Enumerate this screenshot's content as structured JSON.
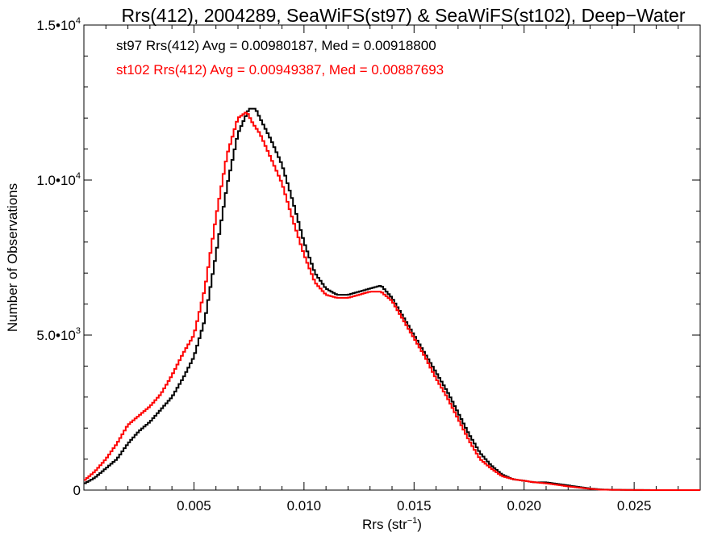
{
  "chart_data": {
    "type": "line",
    "title": "Rrs(412), 2004289, SeaWiFS(st97) & SeaWiFS(st102), Deep−Water",
    "xlabel_base": "Rrs (str",
    "xlabel_sup": "−1",
    "xlabel_end": ")",
    "ylabel": "Number of Observations",
    "xlim": [
      0.0,
      0.028
    ],
    "ylim": [
      0,
      15000
    ],
    "x_ticks": [
      {
        "v": 0.005,
        "label": "0.005"
      },
      {
        "v": 0.01,
        "label": "0.010"
      },
      {
        "v": 0.015,
        "label": "0.015"
      },
      {
        "v": 0.02,
        "label": "0.020"
      },
      {
        "v": 0.025,
        "label": "0.025"
      }
    ],
    "y_ticks": [
      {
        "v": 0,
        "base": "0",
        "exp": ""
      },
      {
        "v": 5000,
        "base": "5.0•10",
        "exp": "3"
      },
      {
        "v": 10000,
        "base": "1.0•10",
        "exp": "4"
      },
      {
        "v": 15000,
        "base": "1.5•10",
        "exp": "4"
      }
    ],
    "annotations": [
      {
        "text": "st97 Rrs(412) Avg = 0.00980187, Med = 0.00918800",
        "color": "#000000"
      },
      {
        "text": "st102 Rrs(412) Avg = 0.00949387, Med = 0.00887693",
        "color": "#ff0000"
      }
    ],
    "series": [
      {
        "color": "#000000",
        "x": [
          0.0,
          0.0005,
          0.001,
          0.0015,
          0.002,
          0.0025,
          0.003,
          0.0035,
          0.004,
          0.0045,
          0.005,
          0.0055,
          0.006,
          0.0065,
          0.007,
          0.0075,
          0.0078,
          0.008,
          0.0085,
          0.009,
          0.0095,
          0.01,
          0.0105,
          0.011,
          0.0115,
          0.012,
          0.0125,
          0.013,
          0.0135,
          0.014,
          0.0145,
          0.015,
          0.0155,
          0.016,
          0.0165,
          0.017,
          0.0175,
          0.018,
          0.0185,
          0.019,
          0.0195,
          0.02,
          0.0205,
          0.021,
          0.0215,
          0.022,
          0.0225,
          0.023,
          0.0235,
          0.024,
          0.025,
          0.026,
          0.028
        ],
        "y": [
          200,
          400,
          700,
          1000,
          1500,
          1900,
          2200,
          2600,
          3000,
          3600,
          4300,
          5500,
          7600,
          9800,
          11500,
          12300,
          12300,
          12000,
          11300,
          10500,
          9300,
          8000,
          7000,
          6500,
          6300,
          6300,
          6400,
          6500,
          6600,
          6200,
          5600,
          5000,
          4400,
          3800,
          3200,
          2500,
          1800,
          1200,
          800,
          500,
          350,
          300,
          250,
          250,
          200,
          150,
          100,
          50,
          20,
          10,
          5,
          0,
          0
        ]
      },
      {
        "color": "#ff0000",
        "x": [
          0.0,
          0.0005,
          0.001,
          0.0015,
          0.002,
          0.0025,
          0.003,
          0.0035,
          0.004,
          0.0045,
          0.005,
          0.0055,
          0.006,
          0.0065,
          0.007,
          0.0074,
          0.0077,
          0.008,
          0.0085,
          0.009,
          0.0095,
          0.01,
          0.0105,
          0.011,
          0.0115,
          0.012,
          0.0125,
          0.013,
          0.0135,
          0.014,
          0.0145,
          0.015,
          0.0155,
          0.016,
          0.0165,
          0.017,
          0.0175,
          0.018,
          0.0185,
          0.019,
          0.0195,
          0.02,
          0.0205,
          0.021,
          0.0215,
          0.022,
          0.0225,
          0.023,
          0.0235,
          0.024,
          0.025,
          0.026,
          0.028
        ],
        "y": [
          300,
          600,
          1000,
          1500,
          2100,
          2400,
          2700,
          3100,
          3700,
          4400,
          5000,
          6500,
          8800,
          10800,
          12000,
          12200,
          11800,
          11500,
          10700,
          9900,
          8700,
          7600,
          6700,
          6300,
          6200,
          6200,
          6300,
          6400,
          6400,
          6100,
          5500,
          4900,
          4300,
          3600,
          3000,
          2300,
          1600,
          1000,
          700,
          450,
          350,
          300,
          250,
          220,
          170,
          120,
          80,
          40,
          15,
          8,
          3,
          0,
          0
        ]
      }
    ]
  }
}
